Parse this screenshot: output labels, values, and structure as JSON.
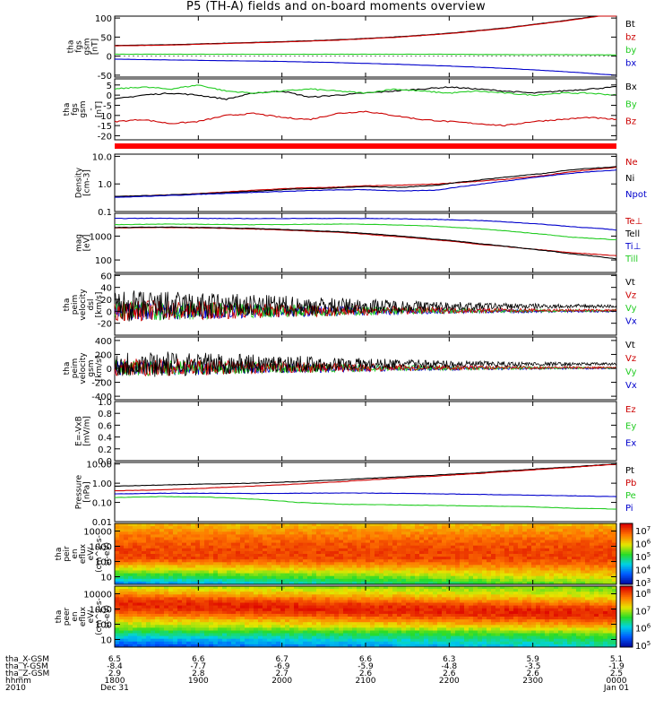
{
  "title": "P5 (TH-A) fields and on-board moments overview",
  "colors": {
    "black": "#000000",
    "red": "#cc0000",
    "green": "#22cc22",
    "blue": "#0000cc",
    "qual": "#ff0000"
  },
  "chart_data": [
    {
      "type": "line",
      "id": "fgs_gsm",
      "ylabel": [
        "tha",
        "fgs",
        "gsm",
        "[nT]"
      ],
      "ylim": [
        -55,
        105
      ],
      "yticks": [
        "100",
        "50",
        "0",
        "-50"
      ],
      "ytick_vals": [
        100,
        50,
        0,
        -50
      ],
      "series": [
        {
          "name": "Bt",
          "color": "black",
          "values": [
            28,
            30,
            34,
            38,
            43,
            50,
            60,
            74,
            92,
            112
          ]
        },
        {
          "name": "bz",
          "color": "red",
          "values": [
            27,
            29,
            33,
            37,
            42,
            49,
            59,
            73,
            91,
            111
          ]
        },
        {
          "name": "by",
          "color": "green",
          "values": [
            5,
            5,
            5,
            5,
            5,
            5,
            5,
            4,
            4,
            3
          ]
        },
        {
          "name": "bx",
          "color": "blue",
          "values": [
            -8,
            -10,
            -12,
            -14,
            -17,
            -21,
            -26,
            -32,
            -40,
            -50
          ]
        }
      ]
    },
    {
      "type": "line",
      "id": "fgs_gsm_detrended",
      "ylabel": [
        "tha",
        "fgs",
        "gsm",
        "-",
        "[nT]"
      ],
      "ylim": [
        -22,
        8
      ],
      "yticks": [
        "5",
        "0",
        "-5",
        "-10",
        "-15",
        "-20"
      ],
      "ytick_vals": [
        5,
        0,
        -5,
        -10,
        -15,
        -20
      ],
      "series": [
        {
          "name": "Bx",
          "color": "black",
          "values": [
            -2,
            0,
            1,
            0,
            -2,
            1,
            2,
            -1,
            0,
            1,
            2,
            3,
            4,
            3,
            2,
            1,
            2,
            3,
            4
          ]
        },
        {
          "name": "By",
          "color": "green",
          "values": [
            3,
            4,
            3,
            5,
            2,
            1,
            2,
            3,
            2,
            1,
            3,
            2,
            1,
            2,
            1,
            0,
            1,
            1,
            0
          ]
        },
        {
          "name": "Bz",
          "color": "red",
          "values": [
            -13,
            -12,
            -14,
            -13,
            -10,
            -9,
            -11,
            -12,
            -9,
            -8,
            -10,
            -12,
            -13,
            -14,
            -15,
            -13,
            -12,
            -11,
            -12
          ]
        }
      ]
    },
    {
      "type": "line",
      "id": "density",
      "log": true,
      "ylabel": [
        "Density",
        "[cm-3]"
      ],
      "ylim": [
        0.1,
        12
      ],
      "yticks": [
        "10.0",
        "1.0",
        "0.1"
      ],
      "ytick_vals": [
        10,
        1,
        0.1
      ],
      "series": [
        {
          "name": "Ne",
          "color": "red",
          "values": [
            0.35,
            0.38,
            0.42,
            0.5,
            0.6,
            0.7,
            0.75,
            0.85,
            0.9,
            1.0,
            1.2,
            1.5,
            2.0,
            3.0,
            4.0
          ]
        },
        {
          "name": "Ni",
          "color": "black",
          "values": [
            0.35,
            0.38,
            0.42,
            0.48,
            0.55,
            0.65,
            0.7,
            0.8,
            0.75,
            0.9,
            1.3,
            1.8,
            2.4,
            3.5,
            4.2
          ]
        },
        {
          "name": "Npot",
          "color": "blue",
          "values": [
            0.33,
            0.36,
            0.4,
            0.45,
            0.5,
            0.55,
            0.6,
            0.62,
            0.55,
            0.6,
            0.9,
            1.3,
            1.9,
            2.6,
            3.2
          ]
        }
      ]
    },
    {
      "type": "line",
      "id": "temperature",
      "log": true,
      "ylabel": [
        "mag",
        "[eV]"
      ],
      "ylim": [
        30,
        9000
      ],
      "yticks": [
        "1000",
        "100"
      ],
      "ytick_vals": [
        1000,
        100
      ],
      "series": [
        {
          "name": "Te⊥",
          "color": "red",
          "values": [
            2200,
            2300,
            2200,
            2000,
            1700,
            1400,
            1000,
            700,
            450,
            300,
            200,
            150
          ]
        },
        {
          "name": "Tell",
          "color": "black",
          "values": [
            2300,
            2400,
            2300,
            2100,
            1800,
            1500,
            1100,
            750,
            480,
            300,
            180,
            110
          ]
        },
        {
          "name": "Ti⊥",
          "color": "blue",
          "values": [
            5500,
            5600,
            5500,
            5400,
            5500,
            5500,
            5400,
            5000,
            4500,
            3500,
            2500,
            1800
          ]
        },
        {
          "name": "Till",
          "color": "green",
          "values": [
            3000,
            3200,
            3100,
            3000,
            3100,
            3200,
            3000,
            2600,
            2000,
            1400,
            900,
            700
          ]
        }
      ]
    },
    {
      "type": "line",
      "id": "peim_dsl",
      "ylabel": [
        "tha",
        "peim",
        "velocity",
        "dsl",
        "[km/s]"
      ],
      "ylim": [
        -40,
        62
      ],
      "yticks": [
        "60",
        "40",
        "20",
        "0",
        "-20"
      ],
      "ytick_vals": [
        60,
        40,
        20,
        0,
        -20
      ],
      "noise": [
        30,
        28,
        24,
        20,
        16,
        12,
        8,
        6,
        4,
        3
      ],
      "series": [
        {
          "name": "Vt",
          "color": "black"
        },
        {
          "name": "Vz",
          "color": "red"
        },
        {
          "name": "Vy",
          "color": "green"
        },
        {
          "name": "Vx",
          "color": "blue"
        }
      ]
    },
    {
      "type": "line",
      "id": "peim_gsm",
      "ylabel": [
        "tha",
        "peim",
        "velocity",
        "gsm",
        "[km/s]"
      ],
      "ylim": [
        -450,
        450
      ],
      "yticks": [
        "400",
        "200",
        "0",
        "-200",
        "-400"
      ],
      "ytick_vals": [
        400,
        200,
        0,
        -200,
        -400
      ],
      "noise": [
        220,
        200,
        170,
        140,
        110,
        80,
        60,
        40,
        30,
        20
      ],
      "series": [
        {
          "name": "Vt",
          "color": "black"
        },
        {
          "name": "Vz",
          "color": "red"
        },
        {
          "name": "Vy",
          "color": "green"
        },
        {
          "name": "Vx",
          "color": "blue"
        }
      ]
    },
    {
      "type": "line",
      "id": "efield",
      "ylabel": [
        "E=-VxB",
        "[mV/m]"
      ],
      "ylim": [
        0,
        1
      ],
      "yticks": [
        "1.0",
        "0.8",
        "0.6",
        "0.4",
        "0.2",
        "0.0"
      ],
      "ytick_vals": [
        1,
        0.8,
        0.6,
        0.4,
        0.2,
        0
      ],
      "series": [
        {
          "name": "Ez",
          "color": "red"
        },
        {
          "name": "Ey",
          "color": "green"
        },
        {
          "name": "Ex",
          "color": "blue"
        }
      ]
    },
    {
      "type": "line",
      "id": "pressure",
      "log": true,
      "ylabel": [
        "Pressure",
        "[nPa]"
      ],
      "ylim": [
        0.01,
        12
      ],
      "yticks": [
        "10.00",
        "1.00",
        "0.10",
        "0.01"
      ],
      "ytick_vals": [
        10,
        1,
        0.1,
        0.01
      ],
      "series": [
        {
          "name": "Pt",
          "color": "black",
          "values": [
            0.7,
            0.8,
            0.9,
            1.0,
            1.2,
            1.5,
            2.0,
            2.6,
            3.5,
            5.0,
            7.0,
            10.0
          ]
        },
        {
          "name": "Pb",
          "color": "red",
          "values": [
            0.4,
            0.45,
            0.55,
            0.7,
            0.9,
            1.2,
            1.7,
            2.3,
            3.2,
            4.6,
            6.6,
            9.5
          ]
        },
        {
          "name": "Pe",
          "color": "green",
          "values": [
            0.18,
            0.2,
            0.19,
            0.15,
            0.1,
            0.08,
            0.075,
            0.07,
            0.065,
            0.06,
            0.05,
            0.045
          ]
        },
        {
          "name": "Pi",
          "color": "blue",
          "values": [
            0.28,
            0.3,
            0.3,
            0.29,
            0.3,
            0.31,
            0.3,
            0.28,
            0.26,
            0.24,
            0.22,
            0.2
          ]
        }
      ]
    },
    {
      "type": "heatmap",
      "id": "peir",
      "ylabel": [
        "tha",
        "peir",
        "en",
        "eflux",
        "eV/",
        "(cm^2-s-",
        "sr-eV)"
      ],
      "yticks": [
        "10000",
        "1000",
        "100",
        "10"
      ],
      "colorbar_ticks": [
        "10^7",
        "10^6",
        "10^5",
        "10^4",
        "10^3"
      ],
      "colorbar_title": "",
      "high_energy_band": "upper"
    },
    {
      "type": "heatmap",
      "id": "peer",
      "ylabel": [
        "tha",
        "peer",
        "en",
        "eflux",
        "eV/",
        "(cm^2-s-",
        "sr-eV)"
      ],
      "yticks": [
        "10000",
        "1000",
        "100",
        "10"
      ],
      "colorbar_ticks": [
        "10^8",
        "10^7",
        "10^6",
        "10^5"
      ],
      "colorbar_title": "",
      "high_energy_band": "middle"
    }
  ],
  "footer": {
    "rows": [
      {
        "label": "tha_X-GSM",
        "values": [
          "6.5",
          "6.6",
          "6.7",
          "6.6",
          "6.3",
          "5.9",
          "5.1"
        ]
      },
      {
        "label": "tha_Y-GSM",
        "values": [
          "-8.4",
          "-7.7",
          "-6.9",
          "-5.9",
          "-4.8",
          "-3.5",
          "-1.9"
        ]
      },
      {
        "label": "tha_Z-GSM",
        "values": [
          "2.9",
          "2.8",
          "2.7",
          "2.6",
          "2.6",
          "2.6",
          "2.5"
        ]
      },
      {
        "label": "hhmm",
        "values": [
          "1800",
          "1900",
          "2000",
          "2100",
          "2200",
          "2300",
          "0000"
        ]
      },
      {
        "label": "2010",
        "values": [
          "Dec 31",
          "",
          "",
          "",
          "",
          "",
          "Jan 01"
        ]
      }
    ]
  }
}
